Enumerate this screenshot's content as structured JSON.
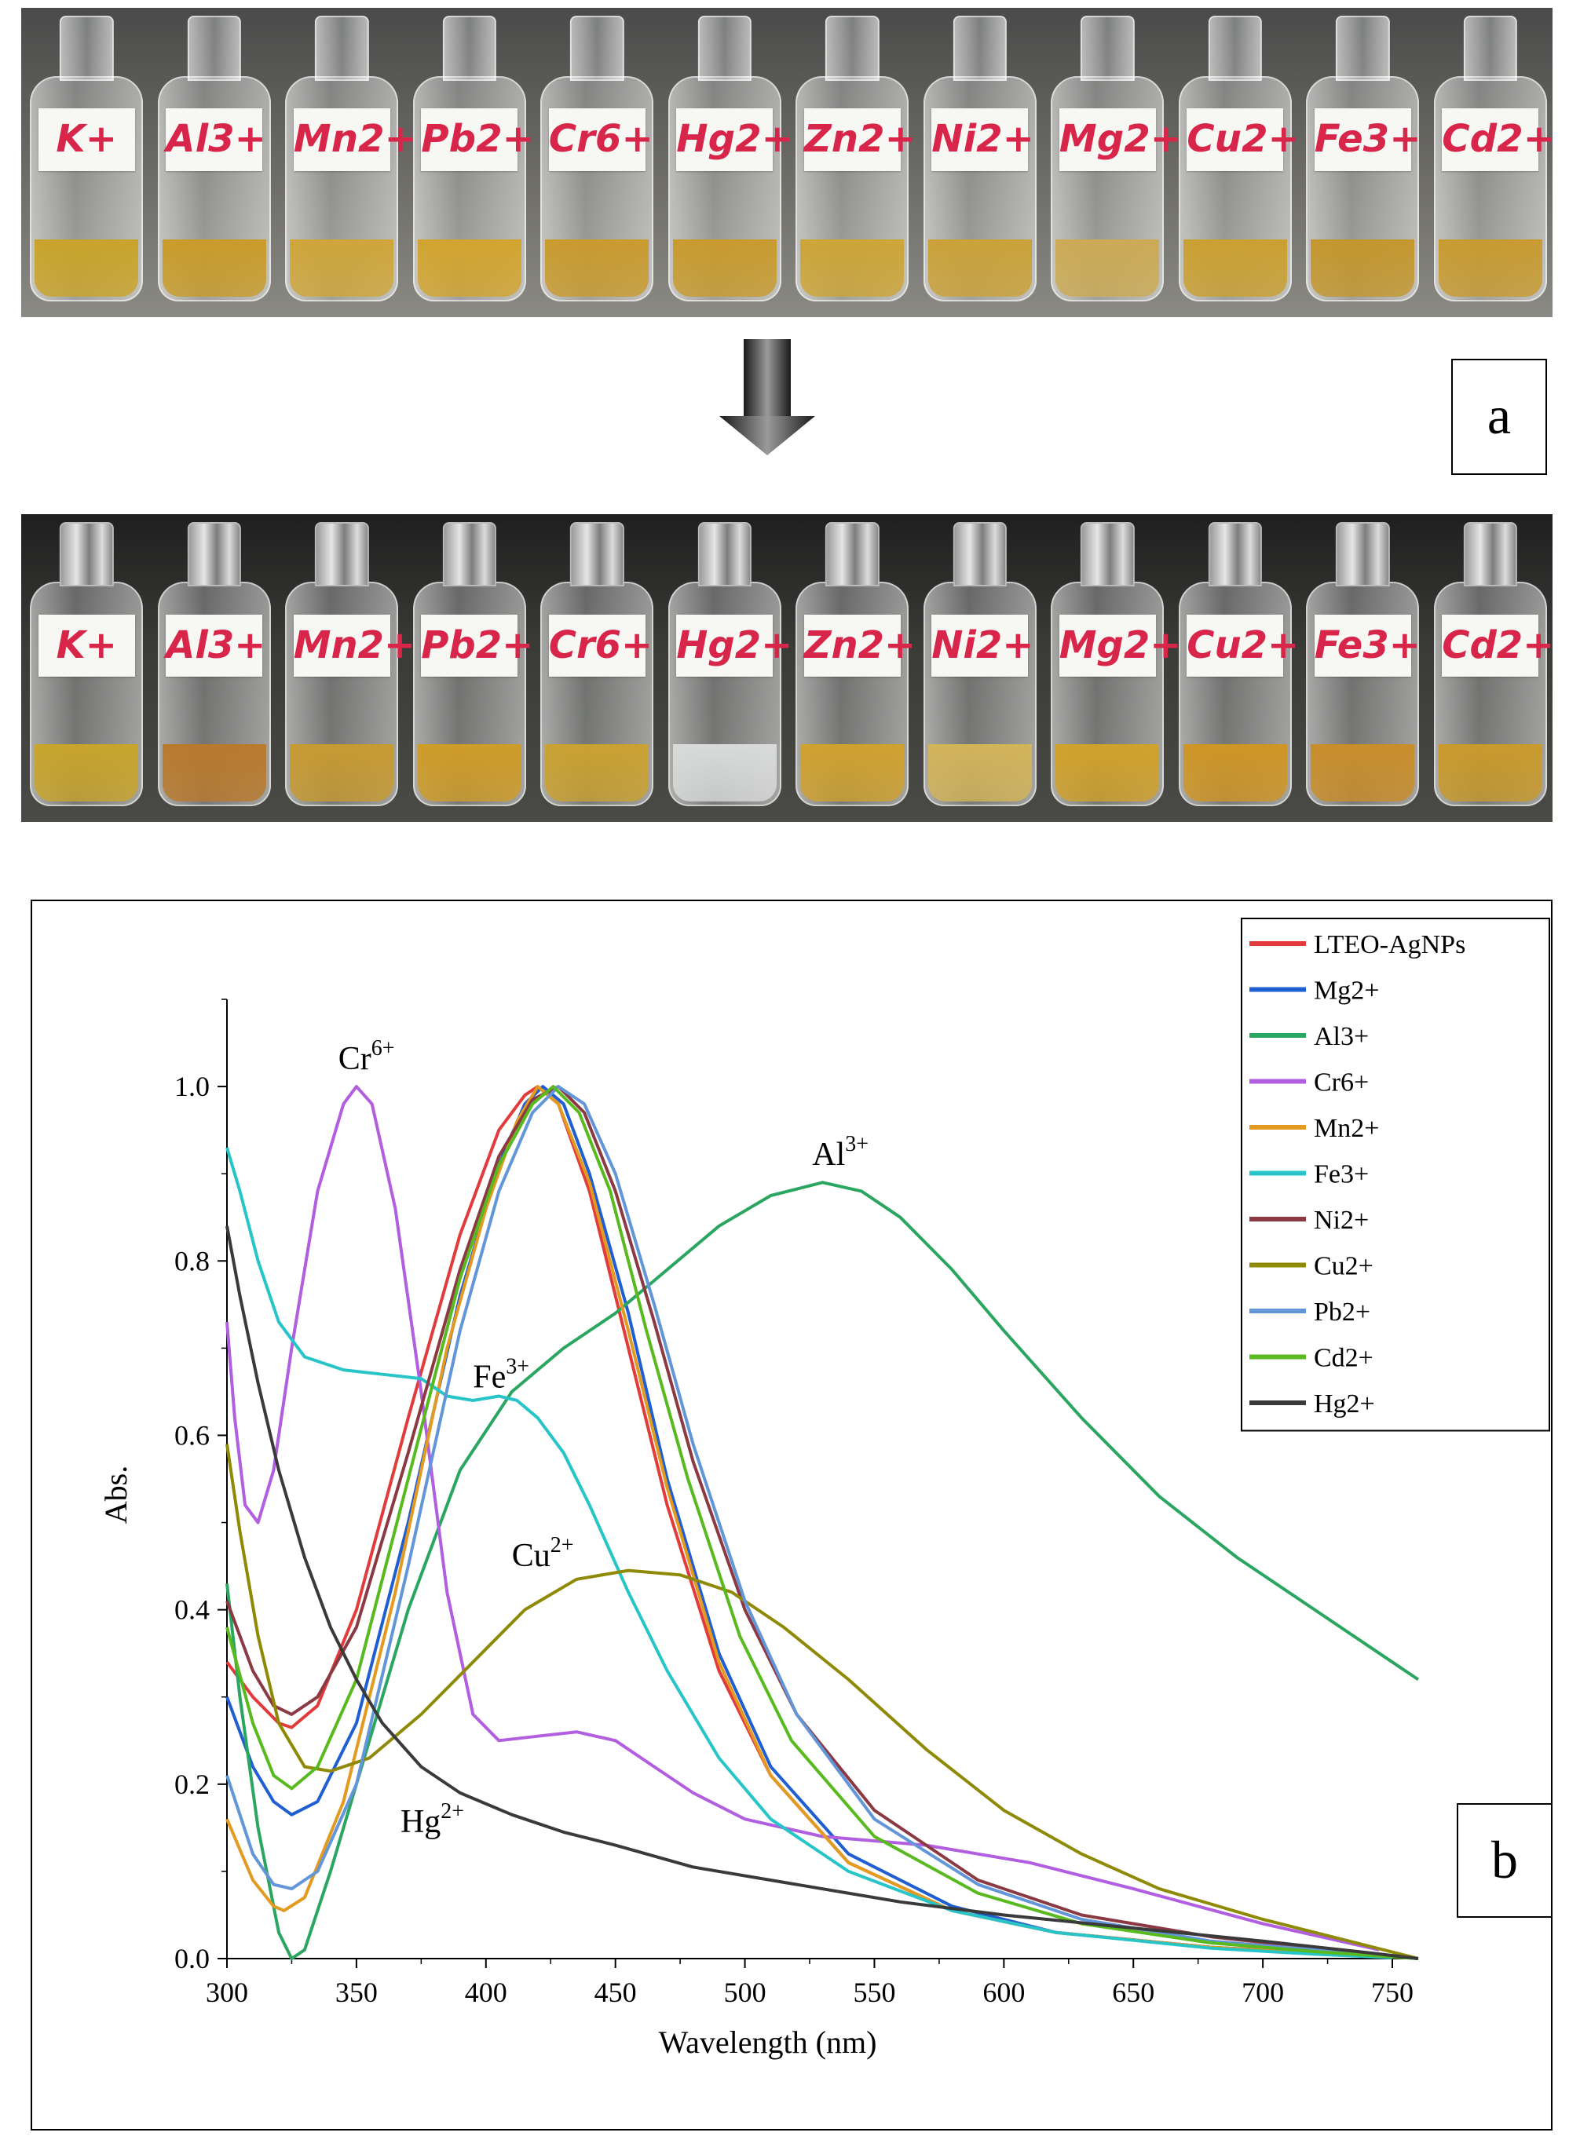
{
  "photos": {
    "before": {
      "vials": [
        {
          "label": "K+",
          "liquid": "#c9a42a"
        },
        {
          "label": "Al3+",
          "liquid": "#c99c2a"
        },
        {
          "label": "Mn2+",
          "liquid": "#cfa63a"
        },
        {
          "label": "Pb2+",
          "liquid": "#d3a52f"
        },
        {
          "label": "Cr6+",
          "liquid": "#c99b2f"
        },
        {
          "label": "Hg2+",
          "liquid": "#c89b2e"
        },
        {
          "label": "Zn2+",
          "liquid": "#cda537"
        },
        {
          "label": "Ni2+",
          "liquid": "#cba239"
        },
        {
          "label": "Mg2+",
          "liquid": "#ccab55"
        },
        {
          "label": "Cu2+",
          "liquid": "#cba031"
        },
        {
          "label": "Fe3+",
          "liquid": "#c4972e"
        },
        {
          "label": "Cd2+",
          "liquid": "#c89b31"
        }
      ]
    },
    "after": {
      "vials": [
        {
          "label": "K+",
          "liquid": "#c8a42c"
        },
        {
          "label": "Al3+",
          "liquid": "#b97a2d"
        },
        {
          "label": "Mn2+",
          "liquid": "#c79a32"
        },
        {
          "label": "Pb2+",
          "liquid": "#cf9c28"
        },
        {
          "label": "Cr6+",
          "liquid": "#caa131"
        },
        {
          "label": "Hg2+",
          "liquid": "#d9dbda"
        },
        {
          "label": "Zn2+",
          "liquid": "#cfa12f"
        },
        {
          "label": "Ni2+",
          "liquid": "#d3b45a"
        },
        {
          "label": "Mg2+",
          "liquid": "#d0a12b"
        },
        {
          "label": "Cu2+",
          "liquid": "#cf9626"
        },
        {
          "label": "Fe3+",
          "liquid": "#c98e2b"
        },
        {
          "label": "Cd2+",
          "liquid": "#c99a2c"
        }
      ]
    }
  },
  "panel_labels": {
    "a": "a",
    "b": "b"
  },
  "colors": {
    "photo_label_text": "#d8264a",
    "arrow": "#555555"
  },
  "chart_data": {
    "type": "line",
    "xlabel": "Wavelength (nm)",
    "ylabel": "Abs.",
    "xlim": [
      300,
      760
    ],
    "ylim": [
      0,
      1.1
    ],
    "xticks": [
      300,
      350,
      400,
      450,
      500,
      550,
      600,
      650,
      700,
      750
    ],
    "xtick_labels": [
      "300",
      "350",
      "400",
      "450",
      "500",
      "550",
      "600",
      "650",
      "700",
      "750"
    ],
    "yticks": [
      0,
      0.2,
      0.4,
      0.6,
      0.8,
      1.0
    ],
    "ytick_labels": [
      "0.0",
      "0.2",
      "0.4",
      "0.6",
      "0.8",
      "1.0"
    ],
    "grid": false,
    "legend_position": "top-right",
    "series": [
      {
        "name": "LTEO-AgNPs",
        "color": "#e23b3b",
        "points": [
          [
            300,
            0.34
          ],
          [
            310,
            0.3
          ],
          [
            320,
            0.27
          ],
          [
            325,
            0.265
          ],
          [
            335,
            0.29
          ],
          [
            350,
            0.4
          ],
          [
            370,
            0.62
          ],
          [
            390,
            0.83
          ],
          [
            405,
            0.95
          ],
          [
            415,
            0.99
          ],
          [
            420,
            1.0
          ],
          [
            428,
            0.98
          ],
          [
            440,
            0.88
          ],
          [
            455,
            0.7
          ],
          [
            470,
            0.52
          ],
          [
            490,
            0.33
          ],
          [
            510,
            0.21
          ],
          [
            540,
            0.11
          ],
          [
            580,
            0.055
          ],
          [
            620,
            0.03
          ],
          [
            680,
            0.013
          ],
          [
            720,
            0.007
          ],
          [
            750,
            0.002
          ]
        ]
      },
      {
        "name": "Mg2+",
        "color": "#1f5fd1",
        "points": [
          [
            300,
            0.3
          ],
          [
            310,
            0.22
          ],
          [
            318,
            0.18
          ],
          [
            325,
            0.165
          ],
          [
            335,
            0.18
          ],
          [
            350,
            0.27
          ],
          [
            370,
            0.5
          ],
          [
            390,
            0.76
          ],
          [
            405,
            0.91
          ],
          [
            415,
            0.98
          ],
          [
            422,
            1.0
          ],
          [
            430,
            0.98
          ],
          [
            440,
            0.9
          ],
          [
            455,
            0.74
          ],
          [
            470,
            0.55
          ],
          [
            490,
            0.35
          ],
          [
            510,
            0.22
          ],
          [
            540,
            0.12
          ],
          [
            580,
            0.06
          ],
          [
            620,
            0.03
          ],
          [
            680,
            0.013
          ],
          [
            720,
            0.006
          ],
          [
            750,
            0.002
          ]
        ]
      },
      {
        "name": "Al3+",
        "color": "#2aa660",
        "points": [
          [
            300,
            0.43
          ],
          [
            305,
            0.3
          ],
          [
            312,
            0.15
          ],
          [
            320,
            0.03
          ],
          [
            325,
            0.0
          ],
          [
            330,
            0.01
          ],
          [
            340,
            0.1
          ],
          [
            355,
            0.25
          ],
          [
            370,
            0.4
          ],
          [
            390,
            0.56
          ],
          [
            410,
            0.65
          ],
          [
            430,
            0.7
          ],
          [
            450,
            0.74
          ],
          [
            470,
            0.79
          ],
          [
            490,
            0.84
          ],
          [
            510,
            0.875
          ],
          [
            530,
            0.89
          ],
          [
            545,
            0.88
          ],
          [
            560,
            0.85
          ],
          [
            580,
            0.79
          ],
          [
            600,
            0.72
          ],
          [
            630,
            0.62
          ],
          [
            660,
            0.53
          ],
          [
            690,
            0.46
          ],
          [
            720,
            0.4
          ],
          [
            745,
            0.35
          ],
          [
            760,
            0.32
          ]
        ]
      },
      {
        "name": "Cr6+",
        "color": "#b15ee0",
        "points": [
          [
            300,
            0.73
          ],
          [
            303,
            0.62
          ],
          [
            307,
            0.52
          ],
          [
            312,
            0.5
          ],
          [
            318,
            0.56
          ],
          [
            325,
            0.7
          ],
          [
            335,
            0.88
          ],
          [
            345,
            0.98
          ],
          [
            350,
            1.0
          ],
          [
            356,
            0.98
          ],
          [
            365,
            0.86
          ],
          [
            375,
            0.65
          ],
          [
            385,
            0.42
          ],
          [
            395,
            0.28
          ],
          [
            405,
            0.25
          ],
          [
            420,
            0.255
          ],
          [
            435,
            0.26
          ],
          [
            450,
            0.25
          ],
          [
            465,
            0.22
          ],
          [
            480,
            0.19
          ],
          [
            500,
            0.16
          ],
          [
            530,
            0.14
          ],
          [
            570,
            0.13
          ],
          [
            610,
            0.11
          ],
          [
            650,
            0.08
          ],
          [
            700,
            0.04
          ],
          [
            745,
            0.01
          ]
        ]
      },
      {
        "name": "Mn2+",
        "color": "#e39a20",
        "points": [
          [
            300,
            0.16
          ],
          [
            310,
            0.09
          ],
          [
            318,
            0.06
          ],
          [
            322,
            0.055
          ],
          [
            330,
            0.07
          ],
          [
            345,
            0.18
          ],
          [
            365,
            0.42
          ],
          [
            385,
            0.7
          ],
          [
            400,
            0.86
          ],
          [
            412,
            0.96
          ],
          [
            420,
            1.0
          ],
          [
            428,
            0.98
          ],
          [
            440,
            0.89
          ],
          [
            455,
            0.72
          ],
          [
            470,
            0.54
          ],
          [
            490,
            0.34
          ],
          [
            510,
            0.21
          ],
          [
            540,
            0.11
          ],
          [
            580,
            0.055
          ],
          [
            620,
            0.03
          ],
          [
            680,
            0.013
          ],
          [
            720,
            0.006
          ],
          [
            750,
            0.002
          ]
        ]
      },
      {
        "name": "Fe3+",
        "color": "#27c4c8",
        "points": [
          [
            300,
            0.93
          ],
          [
            305,
            0.88
          ],
          [
            312,
            0.8
          ],
          [
            320,
            0.73
          ],
          [
            330,
            0.69
          ],
          [
            345,
            0.675
          ],
          [
            360,
            0.67
          ],
          [
            375,
            0.665
          ],
          [
            385,
            0.645
          ],
          [
            395,
            0.64
          ],
          [
            405,
            0.645
          ],
          [
            412,
            0.64
          ],
          [
            420,
            0.62
          ],
          [
            430,
            0.58
          ],
          [
            440,
            0.52
          ],
          [
            455,
            0.42
          ],
          [
            470,
            0.33
          ],
          [
            490,
            0.23
          ],
          [
            510,
            0.16
          ],
          [
            540,
            0.1
          ],
          [
            580,
            0.055
          ],
          [
            620,
            0.03
          ],
          [
            680,
            0.012
          ],
          [
            720,
            0.005
          ],
          [
            750,
            0.001
          ]
        ]
      },
      {
        "name": "Ni2+",
        "color": "#8b3a43",
        "points": [
          [
            300,
            0.41
          ],
          [
            310,
            0.33
          ],
          [
            318,
            0.29
          ],
          [
            325,
            0.28
          ],
          [
            335,
            0.3
          ],
          [
            350,
            0.38
          ],
          [
            370,
            0.58
          ],
          [
            390,
            0.79
          ],
          [
            405,
            0.92
          ],
          [
            418,
            0.985
          ],
          [
            428,
            1.0
          ],
          [
            438,
            0.97
          ],
          [
            450,
            0.88
          ],
          [
            465,
            0.73
          ],
          [
            480,
            0.57
          ],
          [
            500,
            0.4
          ],
          [
            520,
            0.28
          ],
          [
            550,
            0.17
          ],
          [
            590,
            0.09
          ],
          [
            630,
            0.05
          ],
          [
            680,
            0.025
          ],
          [
            720,
            0.012
          ],
          [
            760,
            0.0
          ]
        ]
      },
      {
        "name": "Cu2+",
        "color": "#8f8a06",
        "points": [
          [
            300,
            0.59
          ],
          [
            305,
            0.49
          ],
          [
            312,
            0.37
          ],
          [
            320,
            0.27
          ],
          [
            330,
            0.22
          ],
          [
            340,
            0.215
          ],
          [
            355,
            0.23
          ],
          [
            375,
            0.28
          ],
          [
            395,
            0.34
          ],
          [
            415,
            0.4
          ],
          [
            435,
            0.435
          ],
          [
            455,
            0.445
          ],
          [
            475,
            0.44
          ],
          [
            495,
            0.42
          ],
          [
            515,
            0.38
          ],
          [
            540,
            0.32
          ],
          [
            570,
            0.24
          ],
          [
            600,
            0.17
          ],
          [
            630,
            0.12
          ],
          [
            660,
            0.08
          ],
          [
            700,
            0.045
          ],
          [
            740,
            0.015
          ],
          [
            760,
            0.0
          ]
        ]
      },
      {
        "name": "Pb2+",
        "color": "#6396d8",
        "points": [
          [
            300,
            0.21
          ],
          [
            310,
            0.12
          ],
          [
            318,
            0.085
          ],
          [
            325,
            0.08
          ],
          [
            335,
            0.1
          ],
          [
            350,
            0.2
          ],
          [
            370,
            0.45
          ],
          [
            390,
            0.72
          ],
          [
            405,
            0.88
          ],
          [
            418,
            0.97
          ],
          [
            428,
            1.0
          ],
          [
            438,
            0.98
          ],
          [
            450,
            0.9
          ],
          [
            465,
            0.75
          ],
          [
            480,
            0.59
          ],
          [
            500,
            0.41
          ],
          [
            520,
            0.28
          ],
          [
            550,
            0.16
          ],
          [
            590,
            0.085
          ],
          [
            630,
            0.045
          ],
          [
            680,
            0.02
          ],
          [
            720,
            0.01
          ],
          [
            760,
            0.0
          ]
        ]
      },
      {
        "name": "Cd2+",
        "color": "#58ba1e",
        "points": [
          [
            300,
            0.38
          ],
          [
            310,
            0.27
          ],
          [
            318,
            0.21
          ],
          [
            325,
            0.195
          ],
          [
            335,
            0.22
          ],
          [
            350,
            0.32
          ],
          [
            370,
            0.55
          ],
          [
            390,
            0.78
          ],
          [
            405,
            0.91
          ],
          [
            418,
            0.98
          ],
          [
            426,
            1.0
          ],
          [
            436,
            0.97
          ],
          [
            448,
            0.88
          ],
          [
            462,
            0.72
          ],
          [
            478,
            0.55
          ],
          [
            498,
            0.37
          ],
          [
            518,
            0.25
          ],
          [
            550,
            0.14
          ],
          [
            590,
            0.075
          ],
          [
            630,
            0.04
          ],
          [
            680,
            0.018
          ],
          [
            720,
            0.008
          ],
          [
            760,
            0.0
          ]
        ]
      },
      {
        "name": "Hg2+",
        "color": "#3a3a3a",
        "points": [
          [
            300,
            0.84
          ],
          [
            305,
            0.76
          ],
          [
            312,
            0.66
          ],
          [
            320,
            0.56
          ],
          [
            330,
            0.46
          ],
          [
            340,
            0.38
          ],
          [
            350,
            0.32
          ],
          [
            360,
            0.27
          ],
          [
            375,
            0.22
          ],
          [
            390,
            0.19
          ],
          [
            410,
            0.165
          ],
          [
            430,
            0.145
          ],
          [
            450,
            0.13
          ],
          [
            480,
            0.105
          ],
          [
            520,
            0.085
          ],
          [
            560,
            0.065
          ],
          [
            600,
            0.05
          ],
          [
            650,
            0.035
          ],
          [
            700,
            0.02
          ],
          [
            740,
            0.007
          ],
          [
            760,
            0.0
          ]
        ]
      }
    ],
    "annotations": [
      {
        "text": "Cr",
        "sup": "6+",
        "x": 343,
        "y": 1.02
      },
      {
        "text": "Al",
        "sup": "3+",
        "x": 526,
        "y": 0.91
      },
      {
        "text": "Fe",
        "sup": "3+",
        "x": 395,
        "y": 0.655
      },
      {
        "text": "Cu",
        "sup": "2+",
        "x": 410,
        "y": 0.45
      },
      {
        "text": "Hg",
        "sup": "2+",
        "x": 367,
        "y": 0.145
      }
    ]
  }
}
